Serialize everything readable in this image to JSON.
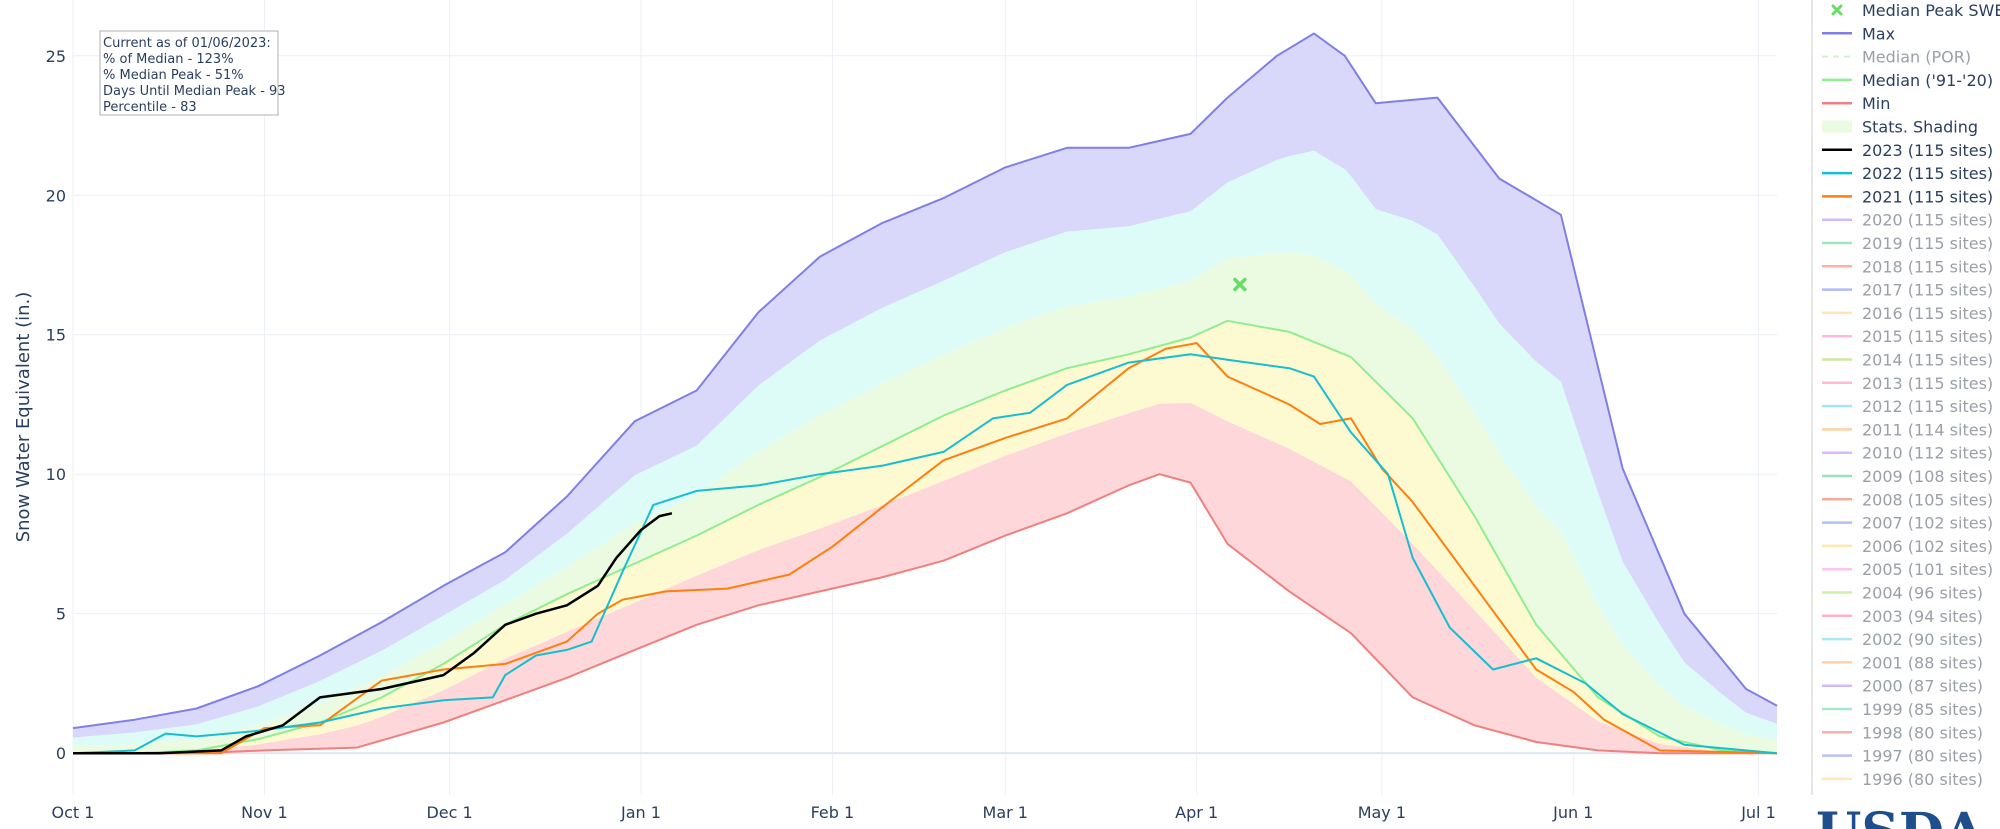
{
  "annotation": {
    "lines": [
      "Current as of 01/06/2023:",
      "% of Median - 123%",
      "% Median Peak - 51%",
      "Days Until Median Peak - 93",
      "Percentile - 83"
    ]
  },
  "logo_text": "USDA",
  "chart_data": {
    "type": "area",
    "ylabel": "Snow Water Equivalent (in.)",
    "xlabel": "",
    "x_tick_labels": [
      "Oct 1",
      "Nov 1",
      "Dec 1",
      "Jan 1",
      "Feb 1",
      "Mar 1",
      "Apr 1",
      "May 1",
      "Jun 1",
      "Jul 1"
    ],
    "x_tick_days": [
      0,
      31,
      61,
      92,
      123,
      151,
      182,
      212,
      243,
      273
    ],
    "xlim_days": [
      0,
      276
    ],
    "y_ticks": [
      0,
      5,
      10,
      15,
      20,
      25
    ],
    "ylim": [
      -1.5,
      27
    ],
    "grid": true,
    "legend_placement": "right",
    "series": [
      {
        "name": "Max",
        "color": "#7f7fe5",
        "x": [
          "Oct 1",
          "Oct 11",
          "Oct 21",
          "Oct 31",
          "Nov 10",
          "Nov 20",
          "Nov 30",
          "Dec 10",
          "Dec 20",
          "Dec 31",
          "Jan 10",
          "Jan 20",
          "Jan 30",
          "Feb 9",
          "Feb 19",
          "Mar 1",
          "Mar 11",
          "Mar 21",
          "Mar 31",
          "Apr 6",
          "Apr 14",
          "Apr 20",
          "Apr 25",
          "Apr 30",
          "May 10",
          "May 20",
          "May 30",
          "Jun 9",
          "Jun 19",
          "Jun 29",
          "Jul 4"
        ],
        "y": [
          0.9,
          1.2,
          1.6,
          2.4,
          3.5,
          4.7,
          6.0,
          7.2,
          9.2,
          11.9,
          13.0,
          15.8,
          17.8,
          19.0,
          19.9,
          21.0,
          21.7,
          21.7,
          22.2,
          23.5,
          25.0,
          25.8,
          25.0,
          23.3,
          23.5,
          20.6,
          19.3,
          10.2,
          5.0,
          2.3,
          1.7
        ]
      },
      {
        "name": "Median ('91-'20)",
        "color": "#90ee90",
        "x": [
          "Oct 1",
          "Oct 11",
          "Oct 21",
          "Oct 31",
          "Nov 10",
          "Nov 20",
          "Nov 30",
          "Dec 10",
          "Dec 20",
          "Dec 31",
          "Jan 10",
          "Jan 20",
          "Jan 30",
          "Feb 9",
          "Feb 19",
          "Mar 1",
          "Mar 11",
          "Mar 21",
          "Mar 31",
          "Apr 6",
          "Apr 16",
          "Apr 26",
          "May 6",
          "May 16",
          "May 26",
          "Jun 5",
          "Jun 15",
          "Jun 25",
          "Jul 4"
        ],
        "y": [
          0,
          0,
          0.1,
          0.5,
          1.1,
          2.0,
          3.2,
          4.6,
          5.7,
          6.8,
          7.8,
          8.9,
          9.9,
          11.0,
          12.1,
          13.0,
          13.8,
          14.3,
          14.9,
          15.5,
          15.1,
          14.2,
          12.0,
          8.5,
          4.6,
          2.0,
          0.6,
          0.1,
          0
        ]
      },
      {
        "name": "Min",
        "color": "#f08080",
        "x": [
          "Oct 1",
          "Oct 21",
          "Nov 1",
          "Nov 16",
          "Nov 30",
          "Dec 10",
          "Dec 20",
          "Dec 31",
          "Jan 10",
          "Jan 20",
          "Jan 30",
          "Feb 9",
          "Feb 19",
          "Mar 1",
          "Mar 11",
          "Mar 21",
          "Mar 26",
          "Mar 31",
          "Apr 6",
          "Apr 16",
          "Apr 26",
          "May 6",
          "May 16",
          "May 26",
          "Jun 5",
          "Jun 15",
          "Jul 4"
        ],
        "y": [
          0,
          0,
          0.1,
          0.2,
          1.1,
          1.9,
          2.7,
          3.7,
          4.6,
          5.3,
          5.8,
          6.3,
          6.9,
          7.8,
          8.6,
          9.6,
          10.0,
          9.7,
          7.5,
          5.8,
          4.3,
          2.0,
          1.0,
          0.4,
          0.1,
          0,
          0
        ]
      },
      {
        "name": "2023 (115 sites)",
        "color": "#000000",
        "x": [
          "Oct 1",
          "Oct 15",
          "Oct 25",
          "Oct 29",
          "Nov 4",
          "Nov 10",
          "Nov 20",
          "Nov 30",
          "Dec 5",
          "Dec 10",
          "Dec 15",
          "Dec 20",
          "Dec 25",
          "Dec 28",
          "Jan 1",
          "Jan 4",
          "Jan 6"
        ],
        "y": [
          0,
          0,
          0.1,
          0.6,
          1.0,
          2.0,
          2.3,
          2.8,
          3.6,
          4.6,
          5.0,
          5.3,
          6.0,
          7.0,
          8.0,
          8.5,
          8.6
        ]
      },
      {
        "name": "2022 (115 sites)",
        "color": "#17becf",
        "x": [
          "Oct 1",
          "Oct 11",
          "Oct 16",
          "Oct 21",
          "Oct 31",
          "Nov 10",
          "Nov 20",
          "Nov 30",
          "Dec 8",
          "Dec 10",
          "Dec 15",
          "Dec 20",
          "Dec 24",
          "Dec 29",
          "Jan 3",
          "Jan 10",
          "Jan 20",
          "Jan 30",
          "Feb 9",
          "Feb 19",
          "Feb 27",
          "Mar 5",
          "Mar 11",
          "Mar 21",
          "Mar 31",
          "Apr 6",
          "Apr 16",
          "Apr 20",
          "Apr 26",
          "May 2",
          "May 6",
          "May 12",
          "May 19",
          "May 26",
          "Jun 3",
          "Jun 9",
          "Jun 19",
          "Jul 4"
        ],
        "y": [
          0,
          0.1,
          0.7,
          0.6,
          0.8,
          1.1,
          1.6,
          1.9,
          2.0,
          2.8,
          3.5,
          3.7,
          4.0,
          6.5,
          8.9,
          9.4,
          9.6,
          10.0,
          10.3,
          10.8,
          12.0,
          12.2,
          13.2,
          14.0,
          14.3,
          14.1,
          13.8,
          13.5,
          11.5,
          10.0,
          7.0,
          4.5,
          3.0,
          3.4,
          2.5,
          1.4,
          0.3,
          0
        ]
      },
      {
        "name": "2021 (115 sites)",
        "color": "#ff7f0e",
        "x": [
          "Oct 1",
          "Oct 25",
          "Nov 1",
          "Nov 10",
          "Nov 20",
          "Nov 30",
          "Dec 10",
          "Dec 20",
          "Dec 25",
          "Dec 29",
          "Jan 5",
          "Jan 15",
          "Jan 25",
          "Feb 1",
          "Feb 9",
          "Feb 19",
          "Mar 1",
          "Mar 11",
          "Mar 21",
          "Mar 27",
          "Apr 1",
          "Apr 6",
          "Apr 11",
          "Apr 16",
          "Apr 21",
          "Apr 26",
          "May 1",
          "May 6",
          "May 11",
          "May 16",
          "May 21",
          "May 26",
          "Jun 1",
          "Jun 6",
          "Jun 15",
          "Jul 4"
        ],
        "y": [
          0,
          0,
          0.9,
          1.0,
          2.6,
          3.0,
          3.2,
          4.0,
          5.0,
          5.5,
          5.8,
          5.9,
          6.4,
          7.4,
          8.8,
          10.5,
          11.3,
          12.0,
          13.8,
          14.5,
          14.7,
          13.5,
          13.0,
          12.5,
          11.8,
          12.0,
          10.2,
          9.0,
          7.5,
          6.0,
          4.5,
          3.0,
          2.2,
          1.2,
          0.1,
          0
        ]
      }
    ],
    "shading_bands": [
      {
        "between": [
          "Min",
          "Q25"
        ],
        "color": "#fdd7da"
      },
      {
        "between": [
          "Q25",
          "Median ('91-'20)"
        ],
        "color": "#fdfad2"
      },
      {
        "between": [
          "Median ('91-'20)",
          "Q75"
        ],
        "color": "#eafbe2"
      },
      {
        "between": [
          "Q75",
          "Q90"
        ],
        "color": "#ddfcf7"
      },
      {
        "between": [
          "Q90",
          "Max"
        ],
        "color": "#d9d8fb"
      }
    ],
    "median_peak_swe": {
      "x": "Apr 8",
      "y": 16.8,
      "color": "#66dd66"
    },
    "legend": [
      {
        "label": "Median Peak SWE",
        "color": "#66dd66",
        "style": "marker",
        "active": true
      },
      {
        "label": "Max",
        "color": "#7f7fe5",
        "style": "line",
        "active": true
      },
      {
        "label": "Median (POR)",
        "color": "#9fdf9f",
        "style": "dash",
        "active": false
      },
      {
        "label": "Median ('91-'20)",
        "color": "#90ee90",
        "style": "line",
        "active": true
      },
      {
        "label": "Min",
        "color": "#f08080",
        "style": "line",
        "active": true
      },
      {
        "label": "Stats. Shading",
        "color": "#eafbe2",
        "style": "fill",
        "active": true
      },
      {
        "label": "2023 (115 sites)",
        "color": "#000000",
        "style": "line",
        "active": true
      },
      {
        "label": "2022 (115 sites)",
        "color": "#17becf",
        "style": "line",
        "active": true
      },
      {
        "label": "2021 (115 sites)",
        "color": "#ff7f0e",
        "style": "line",
        "active": true
      },
      {
        "label": "2020 (115 sites)",
        "color": "#9467ff",
        "style": "line",
        "active": false
      },
      {
        "label": "2019 (115 sites)",
        "color": "#2ecc71",
        "style": "line",
        "active": false
      },
      {
        "label": "2018 (115 sites)",
        "color": "#ff5533",
        "style": "line",
        "active": false
      },
      {
        "label": "2017 (115 sites)",
        "color": "#5566ee",
        "style": "line",
        "active": false
      },
      {
        "label": "2016 (115 sites)",
        "color": "#ffcc66",
        "style": "line",
        "active": false
      },
      {
        "label": "2015 (115 sites)",
        "color": "#ff66cc",
        "style": "line",
        "active": false
      },
      {
        "label": "2014 (115 sites)",
        "color": "#99cc33",
        "style": "line",
        "active": false
      },
      {
        "label": "2013 (115 sites)",
        "color": "#ff6699",
        "style": "line",
        "active": false
      },
      {
        "label": "2012 (115 sites)",
        "color": "#33ccdd",
        "style": "line",
        "active": false
      },
      {
        "label": "2011 (114 sites)",
        "color": "#ff9933",
        "style": "line",
        "active": false
      },
      {
        "label": "2010 (112 sites)",
        "color": "#aa66ff",
        "style": "line",
        "active": false
      },
      {
        "label": "2009 (108 sites)",
        "color": "#22bb77",
        "style": "line",
        "active": false
      },
      {
        "label": "2008 (105 sites)",
        "color": "#ee4422",
        "style": "line",
        "active": false
      },
      {
        "label": "2007 (102 sites)",
        "color": "#5577ee",
        "style": "line",
        "active": false
      },
      {
        "label": "2006 (102 sites)",
        "color": "#ffcc55",
        "style": "line",
        "active": false
      },
      {
        "label": "2005 (101 sites)",
        "color": "#ff77dd",
        "style": "line",
        "active": false
      },
      {
        "label": "2004 (96 sites)",
        "color": "#99dd44",
        "style": "line",
        "active": false
      },
      {
        "label": "2003 (94 sites)",
        "color": "#ff5588",
        "style": "line",
        "active": false
      },
      {
        "label": "2002 (90 sites)",
        "color": "#44ccdd",
        "style": "line",
        "active": false
      },
      {
        "label": "2001 (88 sites)",
        "color": "#ff9944",
        "style": "line",
        "active": false
      },
      {
        "label": "2000 (87 sites)",
        "color": "#9966ff",
        "style": "line",
        "active": false
      },
      {
        "label": "1999 (85 sites)",
        "color": "#33cc88",
        "style": "line",
        "active": false
      },
      {
        "label": "1998 (80 sites)",
        "color": "#ee5544",
        "style": "line",
        "active": false
      },
      {
        "label": "1997 (80 sites)",
        "color": "#6677ee",
        "style": "line",
        "active": false
      },
      {
        "label": "1996 (80 sites)",
        "color": "#ffcc66",
        "style": "line",
        "active": false
      }
    ]
  }
}
